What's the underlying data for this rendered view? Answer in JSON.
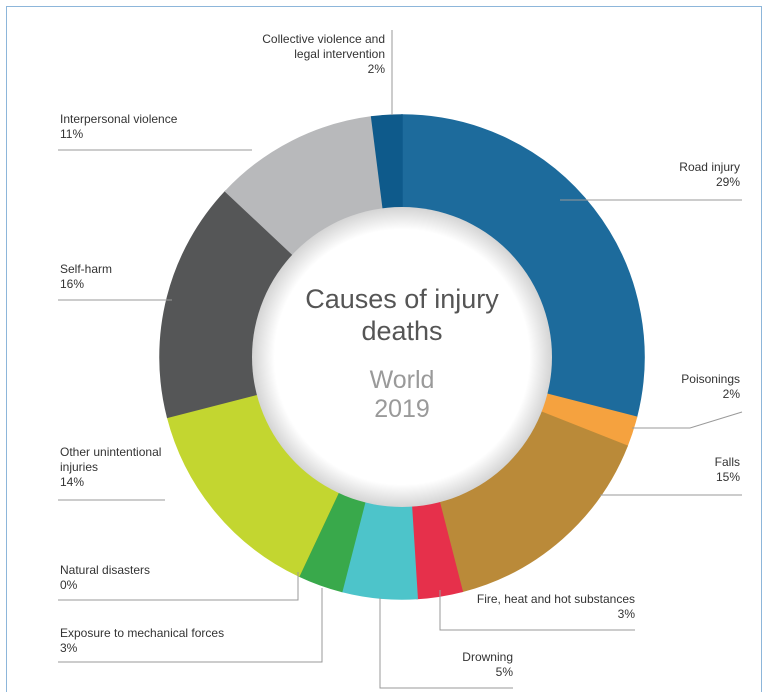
{
  "chart_data": {
    "type": "donut",
    "title": "Causes of injury deaths",
    "subtitle": "World 2019",
    "categories": [
      "Road injury",
      "Poisonings",
      "Falls",
      "Fire, heat and hot substances",
      "Drowning",
      "Exposure to mechanical forces",
      "Natural disasters",
      "Other unintentional injuries",
      "Self-harm",
      "Interpersonal violence",
      "Collective violence and legal intervention"
    ],
    "values": [
      29,
      2,
      15,
      3,
      5,
      3,
      0,
      14,
      16,
      11,
      2
    ],
    "value_labels": [
      "29%",
      "2%",
      "15%",
      "3%",
      "5%",
      "3%",
      "0%",
      "14%",
      "16%",
      "11%",
      "2%"
    ],
    "colors": [
      "#1d6b9c",
      "#f5a23f",
      "#ba8a39",
      "#e6304b",
      "#4dc4ca",
      "#39a94b",
      "#2b6b3a",
      "#c3d630",
      "#555657",
      "#b8b9bb",
      "#0e5a8b"
    ]
  }
}
